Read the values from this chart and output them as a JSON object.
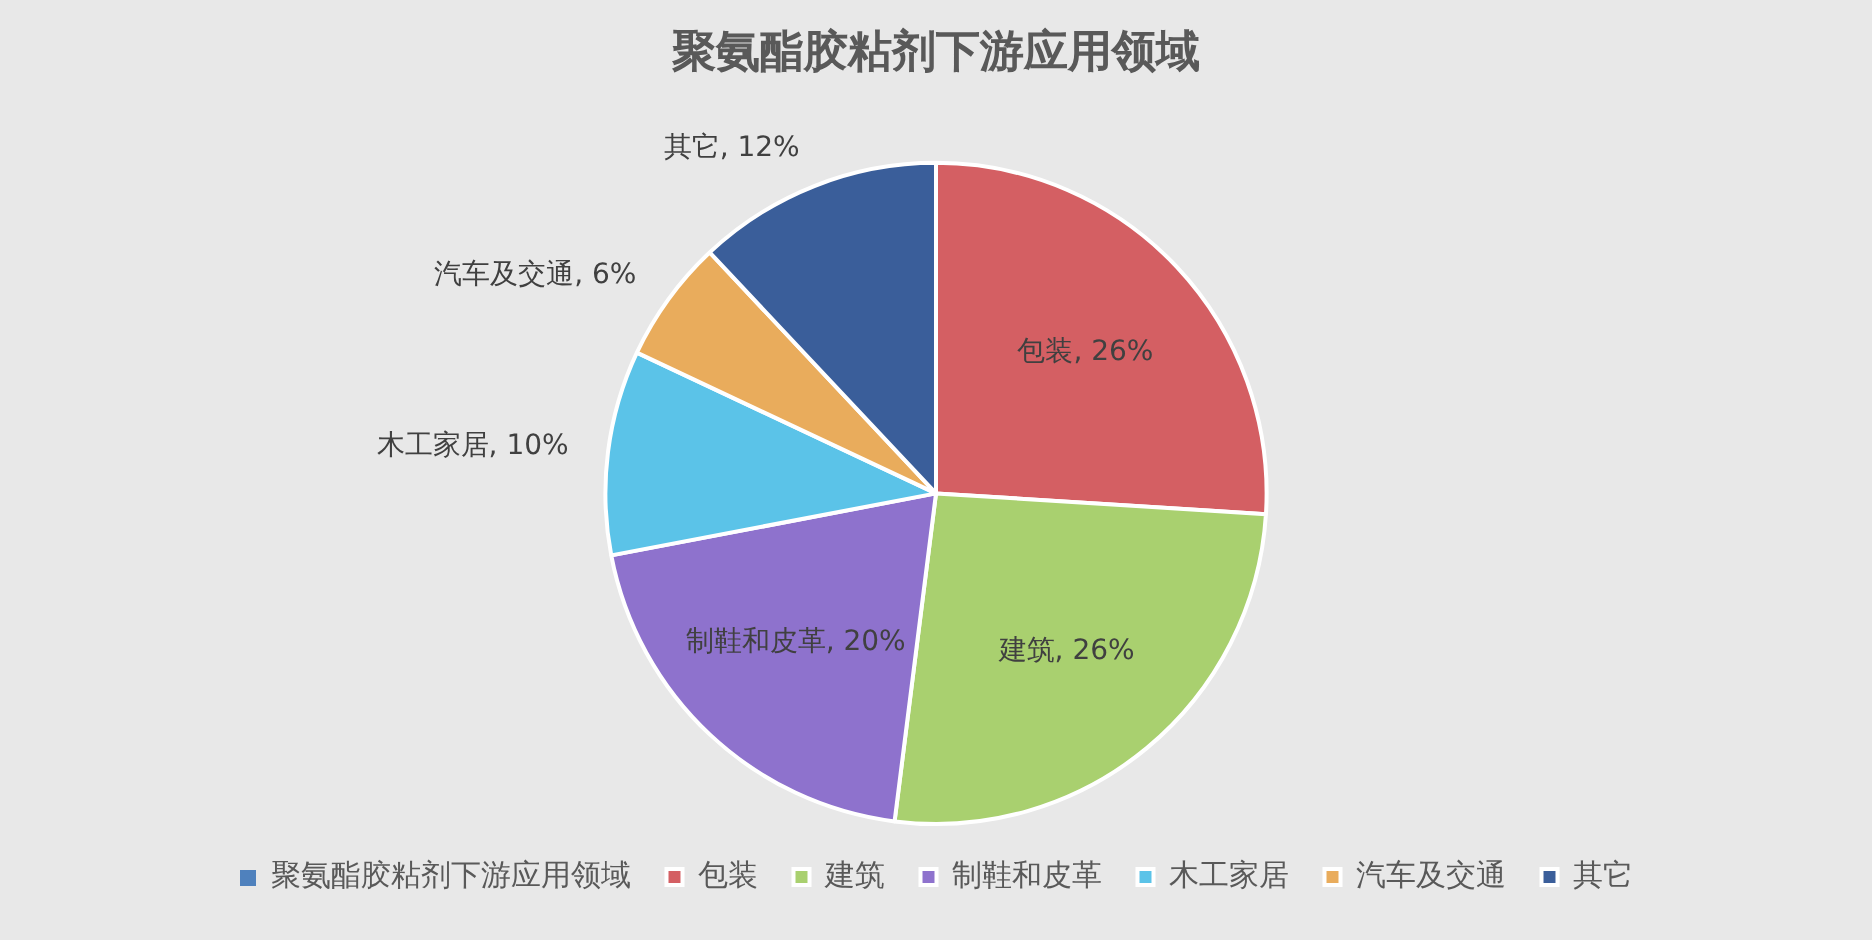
{
  "chart_data": {
    "type": "pie",
    "title": "聚氨酯胶粘剂下游应用领域",
    "legend_title": "聚氨酯胶粘剂下游应用领域",
    "legend": "bottom",
    "categories": [
      "包装",
      "建筑",
      "制鞋和皮革",
      "木工家居",
      "汽车及交通",
      "其它"
    ],
    "values": [
      26,
      26,
      20,
      10,
      6,
      12
    ],
    "value_labels": [
      "包装, 26%",
      "建筑, 26%",
      "制鞋和皮革, 20%",
      "木工家居, 10%",
      "汽车及交通, 6%",
      "其它, 12%"
    ],
    "colors": [
      "#d45f63",
      "#a9d06f",
      "#8e72cd",
      "#5bc3e8",
      "#e9ac5c",
      "#3a5e9a"
    ]
  }
}
